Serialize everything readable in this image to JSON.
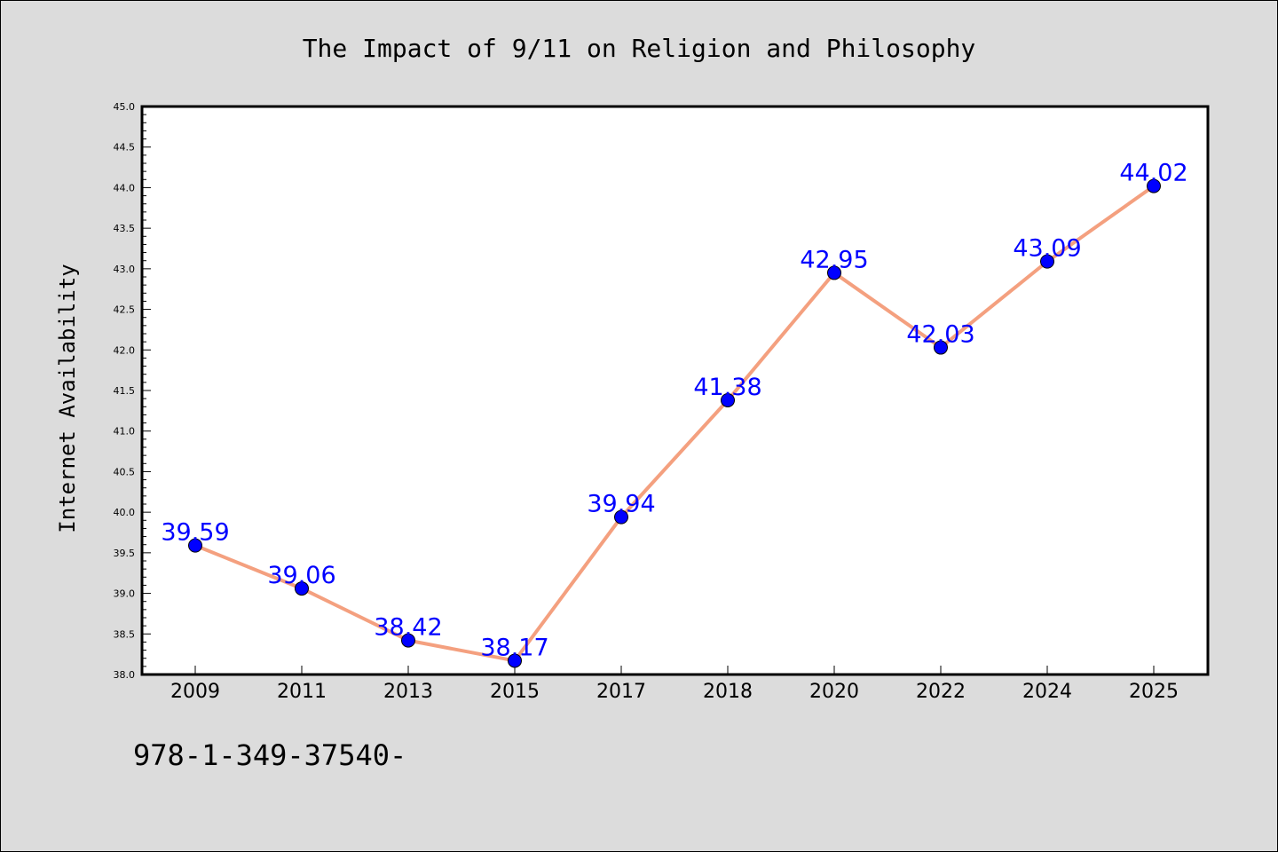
{
  "chart_data": {
    "type": "line",
    "title": "The Impact of 9/11 on Religion and Philosophy",
    "xlabel": "",
    "ylabel": "Internet Availability",
    "categories": [
      "2009",
      "2011",
      "2013",
      "2015",
      "2017",
      "2018",
      "2020",
      "2022",
      "2024",
      "2025"
    ],
    "series": [
      {
        "values": [
          39.59,
          39.06,
          38.42,
          38.17,
          39.94,
          41.38,
          42.95,
          42.03,
          43.09,
          44.02
        ]
      }
    ],
    "value_labels": [
      "39.59",
      "39.06",
      "38.42",
      "38.17",
      "39.94",
      "41.38",
      "42.95",
      "42.03",
      "43.09",
      "44.02"
    ],
    "ylim": [
      38.0,
      45.0
    ],
    "yticks": [
      "38.0",
      "38.5",
      "39.0",
      "39.5",
      "40.0",
      "40.5",
      "41.0",
      "41.5",
      "42.0",
      "42.5",
      "43.0",
      "43.5",
      "44.0",
      "44.5",
      "45.0"
    ],
    "grid": false,
    "line_color": "#f4a07f",
    "marker_color": "#0000ff",
    "label_color": "#0000ff"
  },
  "footnote": "978-1-349-37540-"
}
